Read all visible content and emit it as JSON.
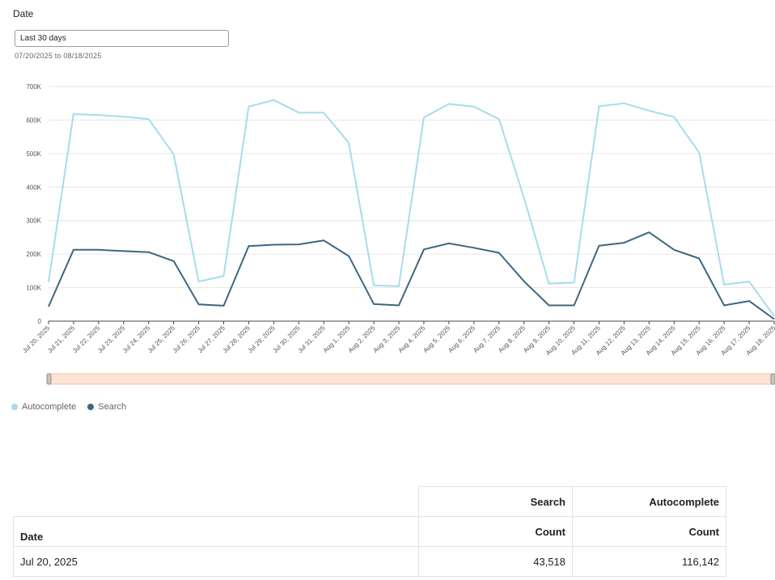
{
  "filter": {
    "label": "Date",
    "selected": "Last 30 days",
    "range_text": "07/20/2025 to 08/18/2025"
  },
  "legend": [
    {
      "name": "Autocomplete",
      "color": "#a5dcee"
    },
    {
      "name": "Search",
      "color": "#3d6680"
    }
  ],
  "chart_data": {
    "type": "line",
    "x": [
      "Jul 20, 2025",
      "Jul 21, 2025",
      "Jul 22, 2025",
      "Jul 23, 2025",
      "Jul 24, 2025",
      "Jul 25, 2025",
      "Jul 26, 2025",
      "Jul 27, 2025",
      "Jul 28, 2025",
      "Jul 29, 2025",
      "Jul 30, 2025",
      "Jul 31, 2025",
      "Aug 1, 2025",
      "Aug 2, 2025",
      "Aug 3, 2025",
      "Aug 4, 2025",
      "Aug 5, 2025",
      "Aug 6, 2025",
      "Aug 7, 2025",
      "Aug 8, 2025",
      "Aug 9, 2025",
      "Aug 10, 2025",
      "Aug 11, 2025",
      "Aug 12, 2025",
      "Aug 13, 2025",
      "Aug 14, 2025",
      "Aug 15, 2025",
      "Aug 16, 2025",
      "Aug 17, 2025",
      "Aug 18, 2025"
    ],
    "series": [
      {
        "name": "Autocomplete",
        "color": "#a5dcee",
        "values": [
          116142,
          618000,
          615000,
          610000,
          603000,
          498000,
          118000,
          135000,
          640000,
          660000,
          622000,
          622000,
          532000,
          107000,
          104000,
          608000,
          648000,
          640000,
          603000,
          368000,
          112000,
          115000,
          641000,
          650000,
          628000,
          609000,
          503000,
          109000,
          118000,
          15000
        ]
      },
      {
        "name": "Search",
        "color": "#3d6680",
        "values": [
          43518,
          213000,
          213000,
          209000,
          206000,
          179000,
          50000,
          46000,
          224000,
          228000,
          229000,
          241000,
          194000,
          51000,
          47000,
          214000,
          232000,
          219000,
          204000,
          119000,
          47000,
          47000,
          225000,
          234000,
          265000,
          213000,
          187000,
          47000,
          60000,
          6000
        ]
      }
    ],
    "yticks": [
      "0",
      "100K",
      "200K",
      "300K",
      "400K",
      "500K",
      "600K",
      "700K"
    ],
    "ylim": [
      0,
      700000
    ],
    "grid": true
  },
  "table": {
    "header_row1": {
      "search": "Search",
      "autocomplete": "Autocomplete"
    },
    "header_row2": {
      "date": "Date",
      "search": "Count",
      "autocomplete": "Count"
    },
    "rows": [
      {
        "date": "Jul 20, 2025",
        "search": "43,518",
        "autocomplete": "116,142"
      }
    ]
  }
}
